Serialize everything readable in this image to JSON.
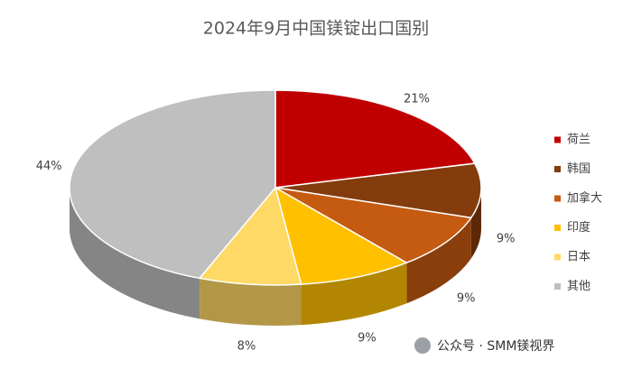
{
  "chart_data": {
    "type": "pie3d",
    "title": "2024年9月中国镁锭出口国别",
    "categories": [
      "荷兰",
      "韩国",
      "加拿大",
      "印度",
      "日本",
      "其他"
    ],
    "values": [
      21,
      9,
      9,
      9,
      8,
      44
    ],
    "value_labels": [
      "21%",
      "9%",
      "9%",
      "9%",
      "8%",
      "44%"
    ],
    "colors": [
      "#c00000",
      "#843c0c",
      "#c55a11",
      "#ffc000",
      "#ffd966",
      "#bfbfbf"
    ],
    "legend": "right"
  },
  "footer": "公众号 · SMM镁视界"
}
